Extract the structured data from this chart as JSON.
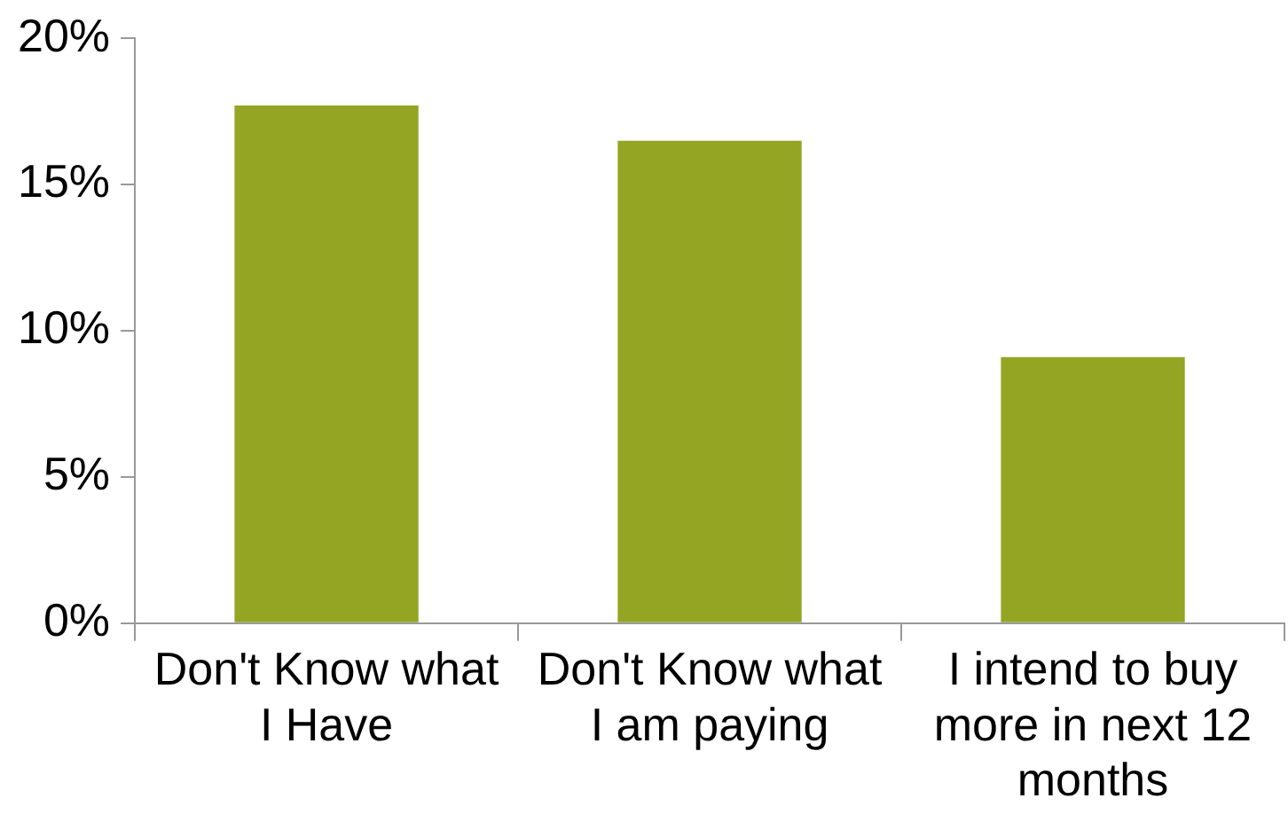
{
  "chart_data": {
    "type": "bar",
    "categories": [
      "Don't Know what I Have",
      "Don't Know what I am paying",
      "I intend to buy more in next 12 months"
    ],
    "values": [
      17.7,
      16.5,
      9.1
    ],
    "color": "#93a523",
    "ylim": [
      0,
      20
    ],
    "yticks": [
      {
        "value": 0,
        "label": "0%"
      },
      {
        "value": 5,
        "label": "5%"
      },
      {
        "value": 10,
        "label": "10%"
      },
      {
        "value": 15,
        "label": "15%"
      },
      {
        "value": 20,
        "label": "20%"
      }
    ],
    "grid": false,
    "legend": false
  }
}
